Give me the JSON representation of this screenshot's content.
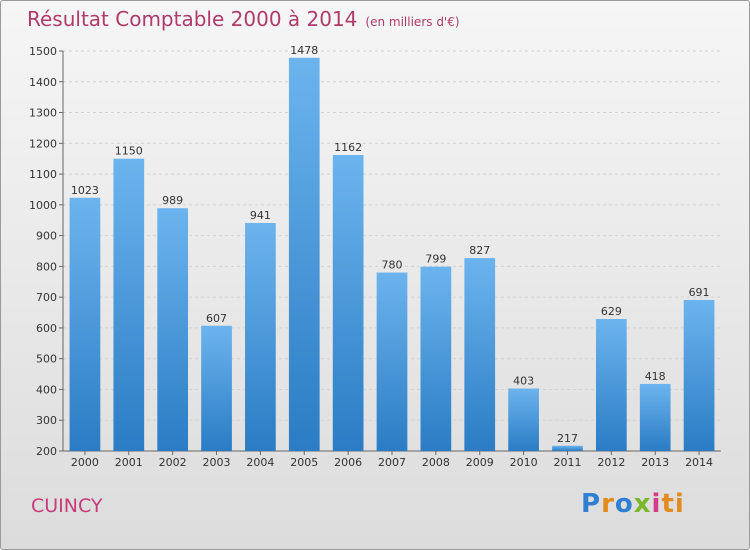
{
  "title": {
    "main": "Résultat Comptable 2000 à 2014",
    "sub": "(en milliers d'€)"
  },
  "footer": {
    "city": "CUINCY"
  },
  "logo": {
    "parts": [
      "P",
      "r",
      "o",
      "x",
      "i",
      "ti"
    ]
  },
  "colors": {
    "bar_top": "#6cb4ee",
    "bar_bottom": "#2a7cc4",
    "title": "#b03a6a",
    "axis": "#666666"
  },
  "chart_data": {
    "type": "bar",
    "title": "Résultat Comptable 2000 à 2014",
    "unit": "(en milliers d'€)",
    "categories": [
      "2000",
      "2001",
      "2002",
      "2003",
      "2004",
      "2005",
      "2006",
      "2007",
      "2008",
      "2009",
      "2010",
      "2011",
      "2012",
      "2013",
      "2014"
    ],
    "values": [
      1023,
      1150,
      989,
      607,
      941,
      1478,
      1162,
      780,
      799,
      827,
      403,
      217,
      629,
      418,
      691
    ],
    "ylim": [
      200,
      1500
    ],
    "yticks": [
      200,
      300,
      400,
      500,
      600,
      700,
      800,
      900,
      1000,
      1100,
      1200,
      1300,
      1400,
      1500
    ],
    "grid": true,
    "xlabel": "",
    "ylabel": ""
  }
}
